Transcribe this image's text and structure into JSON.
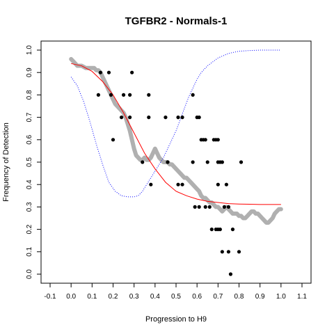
{
  "chart_data": {
    "type": "scatter",
    "title": "TGFBR2 - Normals-1",
    "xlabel": "Progression to H9",
    "ylabel": "Frequency of Detection",
    "xlim": [
      -0.1,
      1.1
    ],
    "ylim": [
      0.0,
      1.0
    ],
    "x_ticks": [
      "-0.1",
      "0.0",
      "0.1",
      "0.2",
      "0.3",
      "0.4",
      "0.5",
      "0.6",
      "0.7",
      "0.8",
      "0.9",
      "1.0",
      "1.1"
    ],
    "y_ticks": [
      "0.0",
      "0.1",
      "0.2",
      "0.3",
      "0.4",
      "0.5",
      "0.6",
      "0.7",
      "0.8",
      "0.9",
      "1.0"
    ],
    "grid": false,
    "colors": {
      "points": "#000000",
      "smooth": "#b0b0b0",
      "fit": "#ff0000",
      "dotted": "#0000ff"
    },
    "series": [
      {
        "type": "scatter",
        "points": [
          [
            0.14,
            0.9
          ],
          [
            0.13,
            0.8
          ],
          [
            0.18,
            0.9
          ],
          [
            0.19,
            0.8
          ],
          [
            0.2,
            0.6
          ],
          [
            0.24,
            0.7
          ],
          [
            0.25,
            0.8
          ],
          [
            0.28,
            0.8
          ],
          [
            0.29,
            0.9
          ],
          [
            0.28,
            0.7
          ],
          [
            0.34,
            0.5
          ],
          [
            0.37,
            0.8
          ],
          [
            0.37,
            0.7
          ],
          [
            0.38,
            0.4
          ],
          [
            0.45,
            0.7
          ],
          [
            0.46,
            0.5
          ],
          [
            0.51,
            0.4
          ],
          [
            0.51,
            0.7
          ],
          [
            0.53,
            0.7
          ],
          [
            0.53,
            0.4
          ],
          [
            0.58,
            0.8
          ],
          [
            0.58,
            0.5
          ],
          [
            0.59,
            0.3
          ],
          [
            0.6,
            0.7
          ],
          [
            0.61,
            0.7
          ],
          [
            0.61,
            0.3
          ],
          [
            0.62,
            0.6
          ],
          [
            0.63,
            0.6
          ],
          [
            0.64,
            0.3
          ],
          [
            0.64,
            0.6
          ],
          [
            0.65,
            0.5
          ],
          [
            0.66,
            0.3
          ],
          [
            0.67,
            0.2
          ],
          [
            0.68,
            0.6
          ],
          [
            0.69,
            0.6
          ],
          [
            0.69,
            0.2
          ],
          [
            0.7,
            0.5
          ],
          [
            0.7,
            0.6
          ],
          [
            0.7,
            0.4
          ],
          [
            0.71,
            0.5
          ],
          [
            0.71,
            0.2
          ],
          [
            0.72,
            0.1
          ],
          [
            0.72,
            0.5
          ],
          [
            0.74,
            0.4
          ],
          [
            0.75,
            0.3
          ],
          [
            0.75,
            0.1
          ],
          [
            0.76,
            0.0
          ],
          [
            0.77,
            0.2
          ],
          [
            0.8,
            0.1
          ],
          [
            0.81,
            0.5
          ],
          [
            0.7,
            0.2
          ],
          [
            0.73,
            0.3
          ]
        ]
      },
      {
        "type": "line",
        "style": "smooth",
        "points": [
          [
            0.0,
            0.96
          ],
          [
            0.01,
            0.95
          ],
          [
            0.02,
            0.94
          ],
          [
            0.03,
            0.93
          ],
          [
            0.05,
            0.93
          ],
          [
            0.07,
            0.92
          ],
          [
            0.09,
            0.92
          ],
          [
            0.11,
            0.92
          ],
          [
            0.12,
            0.91
          ],
          [
            0.13,
            0.91
          ],
          [
            0.14,
            0.9
          ],
          [
            0.15,
            0.88
          ],
          [
            0.16,
            0.86
          ],
          [
            0.17,
            0.84
          ],
          [
            0.18,
            0.82
          ],
          [
            0.19,
            0.8
          ],
          [
            0.2,
            0.78
          ],
          [
            0.21,
            0.76
          ],
          [
            0.22,
            0.75
          ],
          [
            0.23,
            0.74
          ],
          [
            0.24,
            0.73
          ],
          [
            0.25,
            0.72
          ],
          [
            0.26,
            0.7
          ],
          [
            0.27,
            0.67
          ],
          [
            0.28,
            0.64
          ],
          [
            0.29,
            0.6
          ],
          [
            0.3,
            0.56
          ],
          [
            0.31,
            0.53
          ],
          [
            0.32,
            0.52
          ],
          [
            0.33,
            0.51
          ],
          [
            0.34,
            0.51
          ],
          [
            0.35,
            0.52
          ],
          [
            0.36,
            0.51
          ],
          [
            0.37,
            0.51
          ],
          [
            0.38,
            0.52
          ],
          [
            0.39,
            0.54
          ],
          [
            0.4,
            0.56
          ],
          [
            0.41,
            0.54
          ],
          [
            0.42,
            0.52
          ],
          [
            0.43,
            0.51
          ],
          [
            0.44,
            0.5
          ],
          [
            0.45,
            0.5
          ],
          [
            0.46,
            0.5
          ],
          [
            0.47,
            0.49
          ],
          [
            0.48,
            0.49
          ],
          [
            0.49,
            0.48
          ],
          [
            0.5,
            0.47
          ],
          [
            0.51,
            0.46
          ],
          [
            0.52,
            0.45
          ],
          [
            0.53,
            0.44
          ],
          [
            0.54,
            0.43
          ],
          [
            0.55,
            0.43
          ],
          [
            0.56,
            0.42
          ],
          [
            0.57,
            0.41
          ],
          [
            0.58,
            0.4
          ],
          [
            0.59,
            0.39
          ],
          [
            0.6,
            0.38
          ],
          [
            0.61,
            0.37
          ],
          [
            0.62,
            0.35
          ],
          [
            0.63,
            0.34
          ],
          [
            0.64,
            0.34
          ],
          [
            0.65,
            0.33
          ],
          [
            0.66,
            0.32
          ],
          [
            0.67,
            0.32
          ],
          [
            0.68,
            0.31
          ],
          [
            0.69,
            0.3
          ],
          [
            0.7,
            0.3
          ],
          [
            0.71,
            0.29
          ],
          [
            0.72,
            0.28
          ],
          [
            0.73,
            0.29
          ],
          [
            0.74,
            0.3
          ],
          [
            0.75,
            0.29
          ],
          [
            0.76,
            0.28
          ],
          [
            0.77,
            0.27
          ],
          [
            0.78,
            0.27
          ],
          [
            0.79,
            0.27
          ],
          [
            0.8,
            0.26
          ],
          [
            0.81,
            0.26
          ],
          [
            0.82,
            0.25
          ],
          [
            0.83,
            0.25
          ],
          [
            0.84,
            0.26
          ],
          [
            0.85,
            0.27
          ],
          [
            0.86,
            0.28
          ],
          [
            0.87,
            0.28
          ],
          [
            0.88,
            0.27
          ],
          [
            0.89,
            0.27
          ],
          [
            0.9,
            0.26
          ],
          [
            0.91,
            0.25
          ],
          [
            0.92,
            0.24
          ],
          [
            0.93,
            0.23
          ],
          [
            0.94,
            0.23
          ],
          [
            0.95,
            0.24
          ],
          [
            0.96,
            0.25
          ],
          [
            0.97,
            0.27
          ],
          [
            0.98,
            0.28
          ],
          [
            0.99,
            0.29
          ],
          [
            1.0,
            0.29
          ]
        ]
      },
      {
        "type": "line",
        "style": "fit",
        "points": [
          [
            0.0,
            0.94
          ],
          [
            0.05,
            0.93
          ],
          [
            0.1,
            0.905
          ],
          [
            0.15,
            0.86
          ],
          [
            0.2,
            0.8
          ],
          [
            0.25,
            0.72
          ],
          [
            0.3,
            0.63
          ],
          [
            0.35,
            0.54
          ],
          [
            0.4,
            0.47
          ],
          [
            0.45,
            0.41
          ],
          [
            0.5,
            0.37
          ],
          [
            0.55,
            0.35
          ],
          [
            0.6,
            0.335
          ],
          [
            0.65,
            0.325
          ],
          [
            0.7,
            0.32
          ],
          [
            0.75,
            0.315
          ],
          [
            0.8,
            0.313
          ],
          [
            0.85,
            0.312
          ],
          [
            0.9,
            0.311
          ],
          [
            0.95,
            0.311
          ],
          [
            1.0,
            0.311
          ]
        ]
      },
      {
        "type": "line",
        "style": "dotted",
        "points": [
          [
            0.0,
            0.88
          ],
          [
            0.03,
            0.84
          ],
          [
            0.06,
            0.77
          ],
          [
            0.09,
            0.68
          ],
          [
            0.12,
            0.58
          ],
          [
            0.15,
            0.49
          ],
          [
            0.18,
            0.41
          ],
          [
            0.21,
            0.37
          ],
          [
            0.24,
            0.35
          ],
          [
            0.27,
            0.345
          ],
          [
            0.3,
            0.345
          ],
          [
            0.32,
            0.35
          ],
          [
            0.34,
            0.37
          ],
          [
            0.36,
            0.4
          ],
          [
            0.38,
            0.43
          ],
          [
            0.4,
            0.46
          ],
          [
            0.42,
            0.49
          ],
          [
            0.44,
            0.52
          ],
          [
            0.46,
            0.56
          ],
          [
            0.48,
            0.6
          ],
          [
            0.5,
            0.64
          ],
          [
            0.52,
            0.69
          ],
          [
            0.54,
            0.74
          ],
          [
            0.56,
            0.79
          ],
          [
            0.58,
            0.83
          ],
          [
            0.6,
            0.87
          ],
          [
            0.62,
            0.9
          ],
          [
            0.65,
            0.93
          ],
          [
            0.7,
            0.965
          ],
          [
            0.75,
            0.985
          ],
          [
            0.8,
            0.995
          ],
          [
            0.85,
            0.998
          ],
          [
            0.9,
            1.0
          ],
          [
            1.0,
            1.0
          ]
        ]
      }
    ]
  }
}
